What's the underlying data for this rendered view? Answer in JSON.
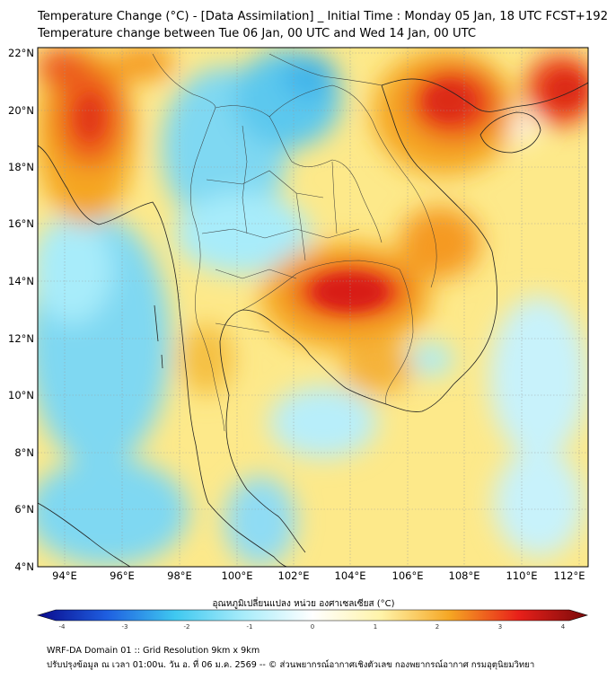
{
  "title_line1": "Temperature Change (°C) - [Data Assimilation] _ Initial Time : Monday 05 Jan, 18 UTC FCST+192",
  "title_line2": "Temperature change between Tue 06 Jan, 00 UTC and Wed 14 Jan, 00 UTC",
  "map": {
    "lat_labels": [
      "22°N",
      "20°N",
      "18°N",
      "16°N",
      "14°N",
      "12°N",
      "10°N",
      "8°N",
      "6°N",
      "4°N"
    ],
    "lon_labels": [
      "94°E",
      "96°E",
      "98°E",
      "100°E",
      "102°E",
      "104°E",
      "106°E",
      "108°E",
      "110°E",
      "112°E"
    ]
  },
  "colorbar": {
    "label": "อุณหภูมิเปลี่ยนแปลง หน่วย องศาเซลเซียส (°C)",
    "ticks": [
      "-4",
      "-3",
      "-2",
      "-1",
      "0",
      "1",
      "2",
      "3",
      "4"
    ],
    "colors": {
      "dark_blue": "#0a0a8c",
      "blue": "#1e5ee0",
      "cyan": "#3fc8f0",
      "light_cyan": "#a8ecfa",
      "white": "#ffffff",
      "light_yellow": "#fff3a8",
      "orange": "#f5a623",
      "red": "#e8201a",
      "dark_red": "#7a0a0a"
    }
  },
  "footer_line1": "WRF-DA Domain 01 :: Grid Resolution 9km x 9km",
  "footer_line2": "ปรับปรุงข้อมูล ณ เวลา 01:00น. วัน อ. ที่ 06 ม.ค. 2569 -- © ส่วนพยากรณ์อากาศเชิงตัวเลข กองพยากรณ์อากาศ กรมอุตุนิยมวิทยา"
}
